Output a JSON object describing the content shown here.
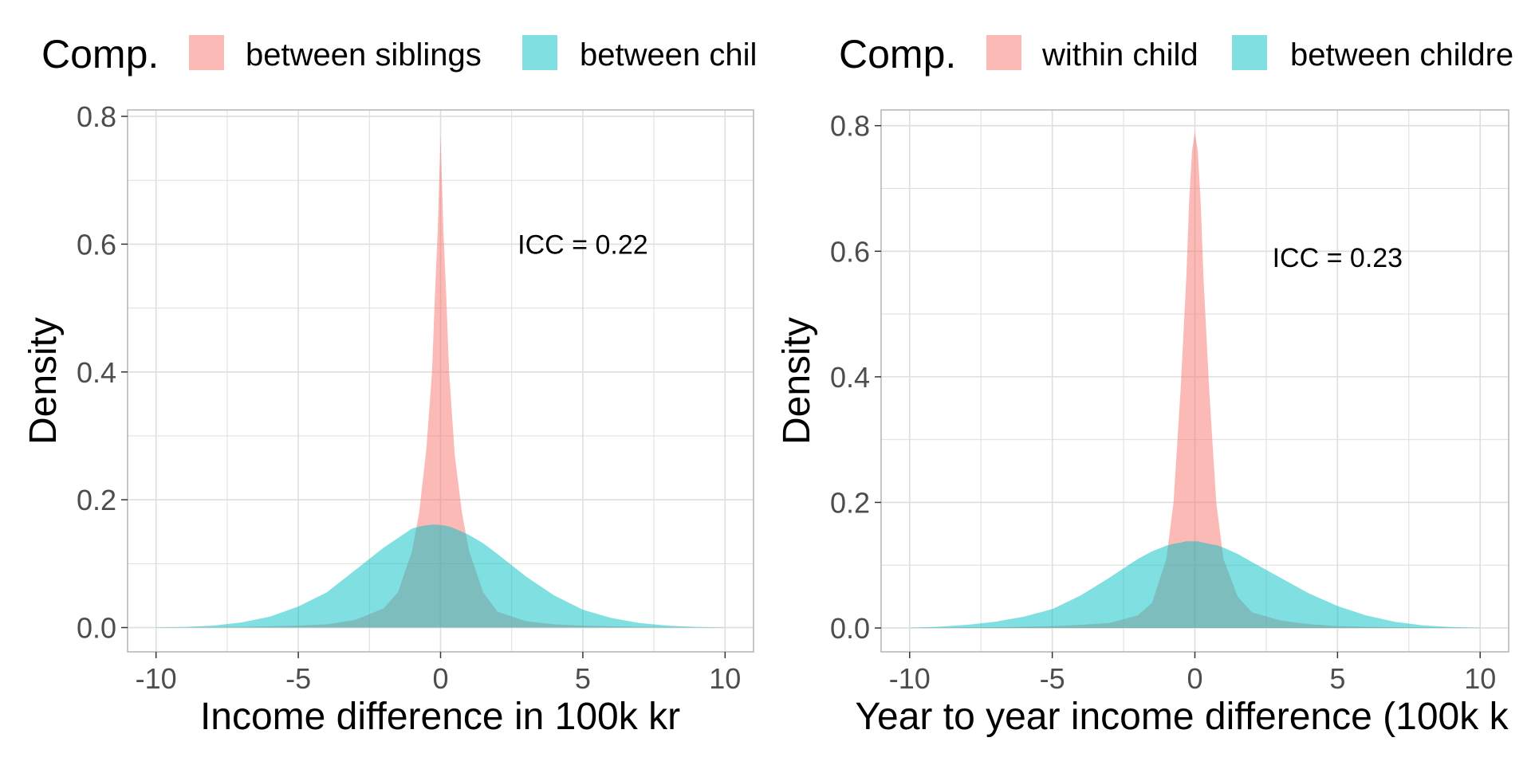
{
  "colors": {
    "series_1": "#F8766D",
    "series_2": "#00BFC4",
    "grid": "#dedede",
    "panel_border": "#b3b3b3",
    "tick_text": "#4d4d4d"
  },
  "chart_data": [
    {
      "type": "area",
      "legend": {
        "title": "Comp.",
        "position": "top",
        "labels": [
          "between siblings",
          "between chil"
        ]
      },
      "xlabel": "Income difference in 100k kr",
      "ylabel": "Density",
      "xlim": [
        -11,
        11
      ],
      "ylim": [
        -0.038,
        0.81
      ],
      "xticks": [
        -10,
        -5,
        0,
        5,
        10
      ],
      "xtick_labels": [
        "-10",
        "-5",
        "0",
        "5",
        "10"
      ],
      "yticks": [
        0.0,
        0.2,
        0.4,
        0.6,
        0.8
      ],
      "ytick_labels": [
        "0.0",
        "0.2",
        "0.4",
        "0.6",
        "0.8"
      ],
      "grid": true,
      "annotation": {
        "text": "ICC = 0.22",
        "x": 5.0,
        "y": 0.6
      },
      "x": [
        -10,
        -9,
        -8,
        -7,
        -6,
        -5,
        -4,
        -3,
        -2,
        -1.5,
        -1,
        -0.75,
        -0.5,
        -0.3,
        -0.2,
        -0.1,
        0,
        0.1,
        0.2,
        0.3,
        0.5,
        0.75,
        1,
        1.5,
        2,
        3,
        4,
        5,
        6,
        7,
        8,
        9,
        10
      ],
      "series": [
        {
          "name": "between siblings",
          "color": "#F8766D",
          "values": [
            0.0,
            0.0005,
            0.0008,
            0.0012,
            0.002,
            0.003,
            0.005,
            0.012,
            0.03,
            0.055,
            0.12,
            0.18,
            0.28,
            0.4,
            0.52,
            0.62,
            0.77,
            0.62,
            0.52,
            0.4,
            0.27,
            0.18,
            0.12,
            0.055,
            0.025,
            0.01,
            0.005,
            0.003,
            0.002,
            0.0012,
            0.0008,
            0.0005,
            0.0
          ]
        },
        {
          "name": "between chil",
          "color": "#00BFC4",
          "values": [
            0.0005,
            0.001,
            0.003,
            0.008,
            0.017,
            0.033,
            0.055,
            0.09,
            0.125,
            0.14,
            0.155,
            0.158,
            0.16,
            0.161,
            0.161,
            0.161,
            0.16,
            0.16,
            0.159,
            0.158,
            0.155,
            0.15,
            0.145,
            0.132,
            0.115,
            0.08,
            0.05,
            0.028,
            0.015,
            0.007,
            0.003,
            0.001,
            0.0002
          ]
        }
      ]
    },
    {
      "type": "area",
      "legend": {
        "title": "Comp.",
        "position": "top",
        "labels": [
          "within child",
          "between childre"
        ]
      },
      "xlabel": "Year to year income difference (100k k",
      "ylabel": "Density",
      "xlim": [
        -11,
        11
      ],
      "ylim": [
        -0.038,
        0.825
      ],
      "xticks": [
        -10,
        -5,
        0,
        5,
        10
      ],
      "xtick_labels": [
        "-10",
        "-5",
        "0",
        "5",
        "10"
      ],
      "yticks": [
        0.0,
        0.2,
        0.4,
        0.6,
        0.8
      ],
      "ytick_labels": [
        "0.0",
        "0.2",
        "0.4",
        "0.6",
        "0.8"
      ],
      "grid": true,
      "annotation": {
        "text": "ICC = 0.23",
        "x": 5.0,
        "y": 0.59
      },
      "x": [
        -10,
        -9,
        -8,
        -7,
        -6,
        -5,
        -4,
        -3,
        -2,
        -1.5,
        -1,
        -0.75,
        -0.5,
        -0.3,
        -0.2,
        -0.1,
        0,
        0.1,
        0.2,
        0.3,
        0.5,
        0.75,
        1,
        1.5,
        2,
        3,
        4,
        5,
        6,
        7,
        8,
        9,
        10
      ],
      "series": [
        {
          "name": "within child",
          "color": "#F8766D",
          "values": [
            0.0,
            0.0005,
            0.0008,
            0.0012,
            0.002,
            0.003,
            0.005,
            0.008,
            0.02,
            0.04,
            0.11,
            0.2,
            0.38,
            0.56,
            0.68,
            0.76,
            0.79,
            0.76,
            0.68,
            0.56,
            0.38,
            0.2,
            0.11,
            0.05,
            0.025,
            0.012,
            0.006,
            0.003,
            0.002,
            0.0012,
            0.0008,
            0.0005,
            0.0
          ]
        },
        {
          "name": "between childre",
          "color": "#00BFC4",
          "values": [
            0.0005,
            0.002,
            0.005,
            0.01,
            0.018,
            0.03,
            0.052,
            0.08,
            0.11,
            0.122,
            0.131,
            0.134,
            0.136,
            0.138,
            0.138,
            0.138,
            0.138,
            0.138,
            0.137,
            0.136,
            0.134,
            0.132,
            0.128,
            0.118,
            0.105,
            0.08,
            0.055,
            0.035,
            0.02,
            0.01,
            0.004,
            0.0015,
            0.0005
          ]
        }
      ]
    }
  ]
}
